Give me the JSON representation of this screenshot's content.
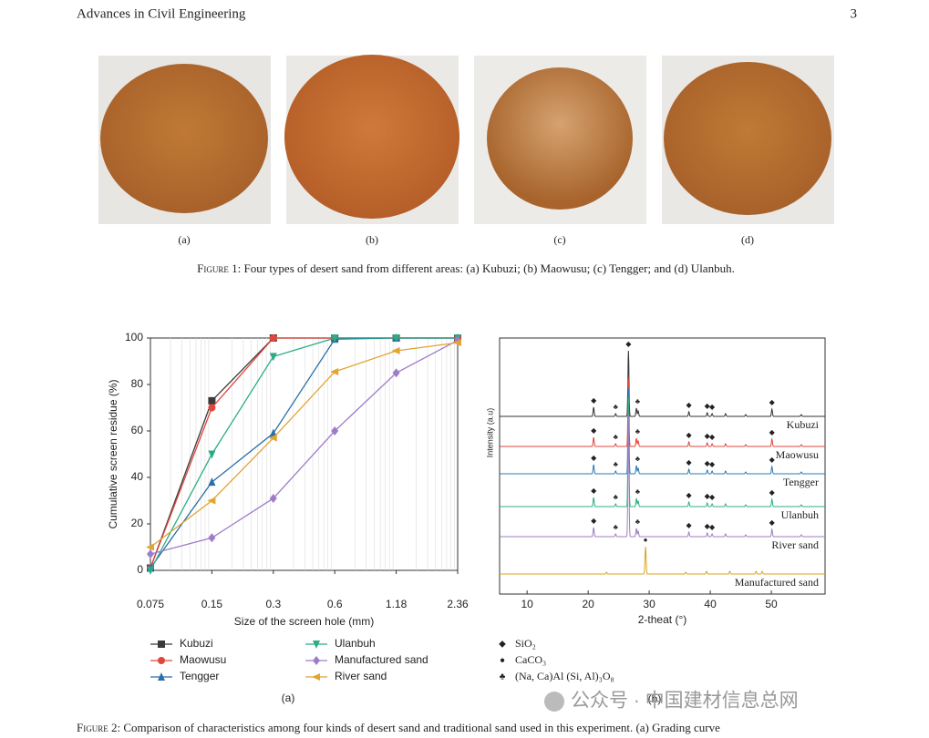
{
  "header": {
    "journal": "Advances in Civil Engineering",
    "page": "3"
  },
  "figure1": {
    "panels": [
      "(a)",
      "(b)",
      "(c)",
      "(d)"
    ],
    "caption_label": "Figure 1:",
    "caption": "Four types of desert sand from different areas: (a) Kubuzi; (b) Maowusu; (c) Tengger; and (d) Ulanbuh."
  },
  "chart_data": {
    "type": "line",
    "xlabel": "Size of the screen hole (mm)",
    "ylabel": "Cumulative screen residue (%)",
    "categories": [
      "0.075",
      "0.15",
      "0.3",
      "0.6",
      "1.18",
      "2.36"
    ],
    "ylim": [
      0,
      100
    ],
    "yticks": [
      0,
      20,
      40,
      60,
      80,
      100
    ],
    "grid": true,
    "series": [
      {
        "name": "Kubuzi",
        "color": "#3a3a3a",
        "marker": "square",
        "values": [
          1,
          73,
          100,
          100,
          100,
          100
        ]
      },
      {
        "name": "Maowusu",
        "color": "#e0463c",
        "marker": "circle",
        "values": [
          1,
          70,
          100,
          100,
          100,
          100
        ]
      },
      {
        "name": "Tengger",
        "color": "#2a6fa8",
        "marker": "triangle-up",
        "values": [
          1,
          38,
          59,
          99.5,
          100,
          100
        ]
      },
      {
        "name": "Ulanbuh",
        "color": "#2bab86",
        "marker": "triangle-down",
        "values": [
          0,
          50,
          92,
          100,
          100,
          100
        ]
      },
      {
        "name": "Manufactured sand",
        "color": "#a07cc8",
        "marker": "diamond",
        "values": [
          7,
          14,
          31,
          60,
          85,
          99
        ]
      },
      {
        "name": "River sand",
        "color": "#e1a533",
        "marker": "triangle-left",
        "values": [
          10,
          30,
          57,
          85.5,
          94.5,
          98
        ]
      }
    ],
    "panel": "(a)"
  },
  "xrd": {
    "xlabel": "2-theat (°)",
    "ylabel": "Intensity (a.u)",
    "xlim": [
      5.5,
      58.8
    ],
    "xticks": [
      10,
      20,
      30,
      40,
      50
    ],
    "traces": [
      {
        "name": "Kubuzi",
        "color": "#333333"
      },
      {
        "name": "Maowusu",
        "color": "#e0463c"
      },
      {
        "name": "Tengger",
        "color": "#2a7ab5"
      },
      {
        "name": "Ulanbuh",
        "color": "#2bb07f"
      },
      {
        "name": "River sand",
        "color": "#9a7fbf"
      },
      {
        "name": "Manufactured sand",
        "color": "#d9a520"
      }
    ],
    "legend": [
      {
        "symbol": "◆",
        "label": "SiO₂"
      },
      {
        "symbol": "●",
        "label": "CaCO₃"
      },
      {
        "symbol": "♣",
        "label": "(Na, Ca)Al (Si, Al)₃O₈"
      }
    ],
    "panel": "(b)"
  },
  "figure2": {
    "caption_label": "Figure 2:",
    "caption": "Comparison of characteristics among four kinds of desert sand and traditional sand used in this experiment. (a) Grading curve"
  },
  "watermark": "公众号 · 中国建材信息总网"
}
